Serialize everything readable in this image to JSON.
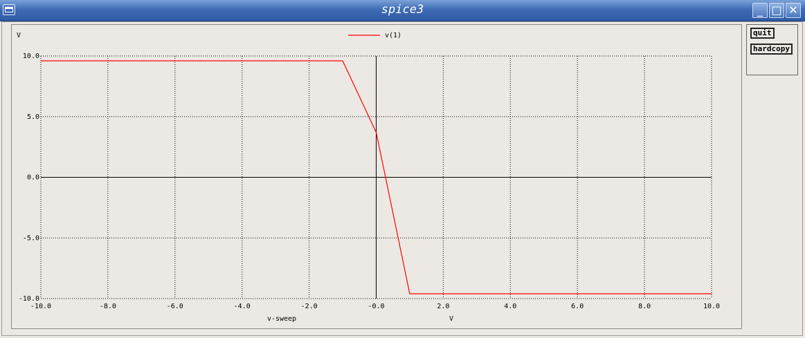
{
  "window": {
    "title": "spice3",
    "minimize_glyph": "_",
    "maximize_glyph": "□",
    "close_glyph": "✕"
  },
  "buttons": {
    "quit": "quit",
    "hardcopy": "hardcopy"
  },
  "chart_data": {
    "type": "line",
    "ylabel": "V",
    "xlabel": "v-sweep",
    "xunit": "V",
    "xlim": [
      -10,
      10
    ],
    "ylim": [
      -10,
      10
    ],
    "xticks": [
      -10,
      -8,
      -6,
      -4,
      -2,
      0,
      2,
      4,
      6,
      8,
      10
    ],
    "xtick_labels": [
      "-10.0",
      "-8.0",
      "-6.0",
      "-4.0",
      "-2.0",
      "-0.0",
      "2.0",
      "4.0",
      "6.0",
      "8.0",
      "10.0"
    ],
    "yticks": [
      10,
      5,
      0,
      -5,
      -10
    ],
    "ytick_labels": [
      "10.0",
      "5.0",
      "0.0",
      "-5.0",
      "-10.0"
    ],
    "grid": true,
    "legend_placement": "top-center",
    "series": [
      {
        "name": "v(1)",
        "color": "#ff0000",
        "x": [
          -10,
          -1.0,
          0.0,
          1.0,
          10
        ],
        "y": [
          9.6,
          9.6,
          3.7,
          -9.6,
          -9.6
        ]
      }
    ]
  }
}
